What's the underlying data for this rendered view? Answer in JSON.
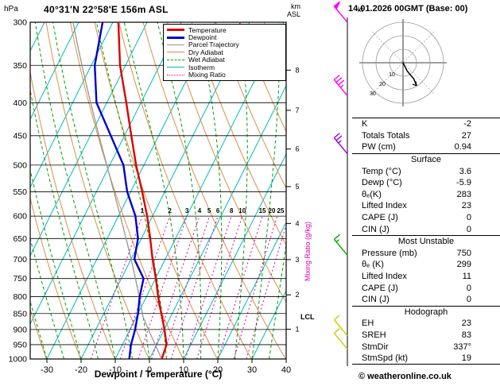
{
  "header": {
    "title": "40°31'N 22°58'E 156m ASL",
    "datetime": "14.01.2026 00GMT (Base: 00)",
    "pressure_unit": "hPa",
    "km_label": "km",
    "asl_label": "ASL",
    "kt_label": "kt",
    "copyright": "© weatheronline.co.uk"
  },
  "axes": {
    "x_title": "Dewpoint / Temperature (°C)",
    "mixing_ratio_label": "Mixing Ratio (g/kg)",
    "lcl_label": "LCL"
  },
  "colors": {
    "temperature": "#dd0000",
    "dewpoint": "#0000cc",
    "parcel": "#999999",
    "dry_adiabat": "#d89048",
    "wet_adiabat": "#00a000",
    "isotherm": "#00bbbb",
    "mixing_ratio": "#dd00aa",
    "axis": "#000000"
  },
  "legend": [
    {
      "label": "Temperature",
      "color": "#dd0000",
      "style": "solid",
      "width": 3
    },
    {
      "label": "Dewpoint",
      "color": "#0000cc",
      "style": "solid",
      "width": 3
    },
    {
      "label": "Parcel Trajectory",
      "color": "#999999",
      "style": "solid",
      "width": 1
    },
    {
      "label": "Dry Adiabat",
      "color": "#d89048",
      "style": "solid",
      "width": 1
    },
    {
      "label": "Wet Adiabat",
      "color": "#00a000",
      "style": "dashed",
      "width": 1
    },
    {
      "label": "Isotherm",
      "color": "#00bbbb",
      "style": "solid",
      "width": 1
    },
    {
      "label": "Mixing Ratio",
      "color": "#dd00aa",
      "style": "dotted",
      "width": 1
    }
  ],
  "chart_data": {
    "type": "skewt_log_p_sounding",
    "pressure_axis": {
      "ticks": [
        300,
        350,
        400,
        450,
        500,
        550,
        600,
        650,
        700,
        750,
        800,
        850,
        900,
        950,
        1000
      ]
    },
    "x_axis": {
      "ticks": [
        -30,
        -20,
        -10,
        0,
        10,
        20,
        30,
        40
      ],
      "min_C": -35,
      "max_C": 40
    },
    "km_axis": {
      "ticks": [
        1,
        2,
        3,
        4,
        5,
        6,
        7,
        8
      ],
      "pressures_hPa": [
        899,
        795,
        701,
        616,
        540,
        472,
        411,
        356
      ]
    },
    "background": {
      "isotherms_C": {
        "min": -120,
        "max": 40,
        "step": 10
      },
      "dry_adiabats_K": {
        "min": 243,
        "max": 453,
        "step": 10
      },
      "wet_adiabats_start_C": {
        "min": -35,
        "max": 35,
        "step": 5
      },
      "mixing_ratio_g_kg": [
        1,
        2,
        3,
        4,
        5,
        6,
        8,
        10,
        15,
        20,
        25
      ]
    },
    "pressure_levels_hPa": [
      1000,
      950,
      900,
      850,
      800,
      750,
      700,
      650,
      600,
      550,
      500,
      450,
      400,
      350,
      300
    ],
    "temperature_C": [
      3.6,
      2.9,
      0.1,
      -3.2,
      -6.6,
      -9.9,
      -13.7,
      -17.4,
      -21.6,
      -26.6,
      -32.3,
      -38.0,
      -44.3,
      -51.6,
      -58.4
    ],
    "dewpoint_C": [
      -5.9,
      -7.5,
      -8.5,
      -10.0,
      -12.0,
      -13.5,
      -19.0,
      -21.0,
      -25.0,
      -31.0,
      -36.0,
      -44.0,
      -53.0,
      -59.0,
      -63.0
    ],
    "parcel": {
      "start_temp_C": 3.6,
      "lcl_hPa": 860
    },
    "wind_barbs": [
      {
        "pressure_hPa": 300,
        "speed_kt": 50,
        "color": "#ff00ff"
      },
      {
        "pressure_hPa": 390,
        "speed_kt": 35,
        "color": "#ff00ff"
      },
      {
        "pressure_hPa": 480,
        "speed_kt": 25,
        "color": "#9900dd"
      },
      {
        "pressure_hPa": 690,
        "speed_kt": 15,
        "color": "#00aa00"
      },
      {
        "pressure_hPa": 920,
        "speed_kt": 10,
        "color": "#cccc00"
      },
      {
        "pressure_hPa": 965,
        "speed_kt": 10,
        "color": "#cccc00"
      }
    ],
    "hodograph": {
      "rings_kt": [
        10,
        20,
        30
      ],
      "trace_u_v_kt": [
        [
          0,
          0
        ],
        [
          3,
          -6
        ],
        [
          8,
          -12
        ],
        [
          10,
          -17
        ]
      ],
      "storm_dir_deg": 337,
      "storm_speed_kt": 19
    }
  },
  "table": {
    "sections": [
      {
        "header": null,
        "rows": [
          [
            "K",
            "-2"
          ],
          [
            "Totals Totals",
            "27"
          ],
          [
            "PW (cm)",
            "0.94"
          ]
        ]
      },
      {
        "header": "Surface",
        "rows": [
          [
            "Temp (°C)",
            "3.6"
          ],
          [
            "Dewp (°C)",
            "-5.9"
          ],
          [
            "θₑ(K)",
            "283"
          ],
          [
            "Lifted Index",
            "23"
          ],
          [
            "CAPE (J)",
            "0"
          ],
          [
            "CIN (J)",
            "0"
          ]
        ]
      },
      {
        "header": "Most Unstable",
        "rows": [
          [
            "Pressure (mb)",
            "750"
          ],
          [
            "θₑ (K)",
            "299"
          ],
          [
            "Lifted Index",
            "11"
          ],
          [
            "CAPE (J)",
            "0"
          ],
          [
            "CIN (J)",
            "0"
          ]
        ]
      },
      {
        "header": "Hodograph",
        "rows": [
          [
            "EH",
            "23"
          ],
          [
            "SREH",
            "83"
          ],
          [
            "StmDir",
            "337°"
          ],
          [
            "StmSpd (kt)",
            "19"
          ]
        ]
      }
    ]
  }
}
